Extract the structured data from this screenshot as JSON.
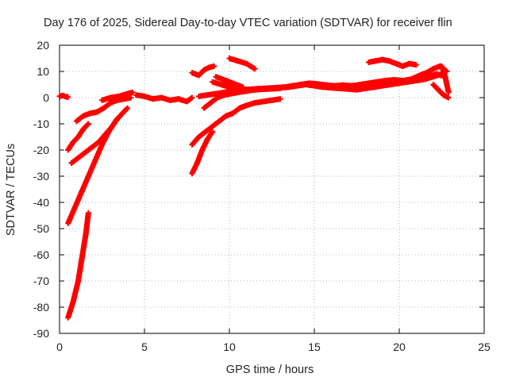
{
  "chart_data": {
    "type": "scatter",
    "title": "Day 176 of 2025, Sidereal Day-to-day VTEC variation (SDTVAR) for receiver flin",
    "xlabel": "GPS time / hours",
    "ylabel": "SDTVAR / TECUs",
    "xlim": [
      0,
      25
    ],
    "ylim": [
      -90,
      20
    ],
    "x_ticks": [
      "0",
      "5",
      "10",
      "15",
      "20",
      "25"
    ],
    "y_ticks": [
      "20",
      "10",
      "0",
      "-10",
      "-20",
      "-30",
      "-40",
      "-50",
      "-60",
      "-70",
      "-80",
      "-90"
    ],
    "grid": true,
    "marker": "plus",
    "series": [
      {
        "color": "#ff0000",
        "tracks": [
          {
            "x": [
              0.0,
              0.2,
              0.4,
              0.5
            ],
            "y": [
              0.5,
              0.8,
              0.3,
              0.2
            ]
          },
          {
            "x": [
              0.5,
              0.8,
              1.1,
              1.3,
              1.55,
              1.7
            ],
            "y": [
              -84,
              -78,
              -70,
              -62,
              -52,
              -44
            ]
          },
          {
            "x": [
              0.5,
              0.9,
              1.3,
              1.7,
              2.1,
              2.5,
              2.9,
              3.3,
              3.7,
              4.0
            ],
            "y": [
              -48,
              -42,
              -36,
              -30,
              -24,
              -18,
              -13,
              -9,
              -6,
              -4
            ]
          },
          {
            "x": [
              0.7,
              1.1,
              1.5,
              1.9,
              2.3,
              2.7,
              3.1,
              3.4
            ],
            "y": [
              -25,
              -23,
              -21,
              -19,
              -17,
              -14,
              -11,
              -8
            ]
          },
          {
            "x": [
              0.5,
              0.8,
              1.1,
              1.4,
              1.7
            ],
            "y": [
              -20,
              -17,
              -15,
              -12,
              -10
            ]
          },
          {
            "x": [
              1.0,
              1.4,
              1.8,
              2.2,
              2.6,
              3.0,
              3.4,
              3.8,
              4.2
            ],
            "y": [
              -9,
              -7,
              -6,
              -5.5,
              -4,
              -2,
              -1,
              -0.5,
              0
            ]
          },
          {
            "x": [
              2.5,
              3.0,
              3.5,
              4.0,
              4.3
            ],
            "y": [
              -1,
              0,
              0.5,
              1.5,
              2
            ]
          },
          {
            "x": [
              4.5,
              5.0,
              5.5,
              6.0,
              6.5,
              7.0,
              7.5,
              7.8
            ],
            "y": [
              1,
              0.5,
              -0.5,
              0,
              -1,
              -0.5,
              -1.5,
              0
            ]
          },
          {
            "x": [
              7.8,
              8.1,
              8.4,
              8.7,
              9.0
            ],
            "y": [
              -29,
              -25,
              -20,
              -16,
              -13
            ]
          },
          {
            "x": [
              7.8,
              8.2,
              8.6,
              9.0,
              9.4,
              9.8,
              10.2,
              10.6,
              11.0,
              11.5,
              12.0,
              12.5,
              13.0
            ],
            "y": [
              -18,
              -15,
              -13,
              -11,
              -9,
              -7,
              -6,
              -4,
              -3,
              -2,
              -1.5,
              -1,
              -0.5
            ]
          },
          {
            "x": [
              8.5,
              8.9,
              9.3,
              9.7,
              10.1,
              10.5,
              11.0,
              11.5,
              12.0,
              12.6,
              13.0
            ],
            "y": [
              -4,
              -2,
              0,
              1,
              1.5,
              2,
              2.5,
              3,
              3.2,
              3.4,
              3.5
            ]
          },
          {
            "x": [
              7.8,
              8.2,
              8.5,
              8.8,
              9.1
            ],
            "y": [
              9.5,
              8.5,
              10.5,
              11.5,
              12
            ]
          },
          {
            "x": [
              9.0,
              9.5,
              10.0,
              10.5
            ],
            "y": [
              6,
              5,
              4,
              3
            ]
          },
          {
            "x": [
              10.0,
              10.5,
              11.0,
              11.5
            ],
            "y": [
              15,
              14,
              13,
              11
            ]
          },
          {
            "x": [
              9.2,
              9.6,
              10.0,
              10.4,
              10.8
            ],
            "y": [
              8,
              7,
              6,
              5,
              4
            ]
          },
          {
            "x": [
              8.2,
              8.7,
              9.2,
              9.7,
              10.2,
              10.7,
              11.2,
              11.7,
              12.2,
              12.7,
              13.2,
              13.7,
              14.2,
              14.7,
              15.2,
              15.7,
              16.2,
              16.7,
              17.2,
              17.7,
              18.2,
              18.7,
              19.2,
              19.7,
              20.2,
              20.7,
              21.2,
              21.7,
              22.2,
              22.7
            ],
            "y": [
              0.5,
              1,
              1.5,
              2,
              2.5,
              3,
              3.2,
              3.4,
              3.6,
              3.8,
              4,
              4.5,
              5,
              5.5,
              5.2,
              4.8,
              4.5,
              4.8,
              4.5,
              5,
              5.5,
              6,
              6.5,
              6.8,
              6.5,
              7,
              7.5,
              8,
              9,
              8
            ]
          },
          {
            "x": [
              10.5,
              11.5,
              12.5,
              13.5,
              14.5,
              15.5,
              16.5,
              17.5,
              18.5,
              19.5,
              20.5,
              21.5,
              22.5
            ],
            "y": [
              2.5,
              3,
              3.5,
              4,
              5,
              4,
              3.5,
              3,
              4,
              5,
              6,
              7,
              9
            ]
          },
          {
            "x": [
              18.2,
              18.6,
              19.0,
              19.4,
              19.8,
              20.2,
              20.6,
              21.0
            ],
            "y": [
              13.5,
              14,
              14.5,
              14,
              13,
              12,
              13,
              12.5
            ]
          },
          {
            "x": [
              20.2,
              20.7,
              21.2,
              21.6,
              22.0,
              22.4,
              22.8
            ],
            "y": [
              6,
              7,
              8.5,
              9.5,
              11,
              12,
              10
            ]
          },
          {
            "x": [
              22.0,
              22.3,
              22.6,
              22.9
            ],
            "y": [
              5,
              3,
              1,
              0
            ]
          },
          {
            "x": [
              22.5,
              22.7,
              22.9
            ],
            "y": [
              12,
              8,
              2
            ]
          }
        ]
      }
    ]
  }
}
